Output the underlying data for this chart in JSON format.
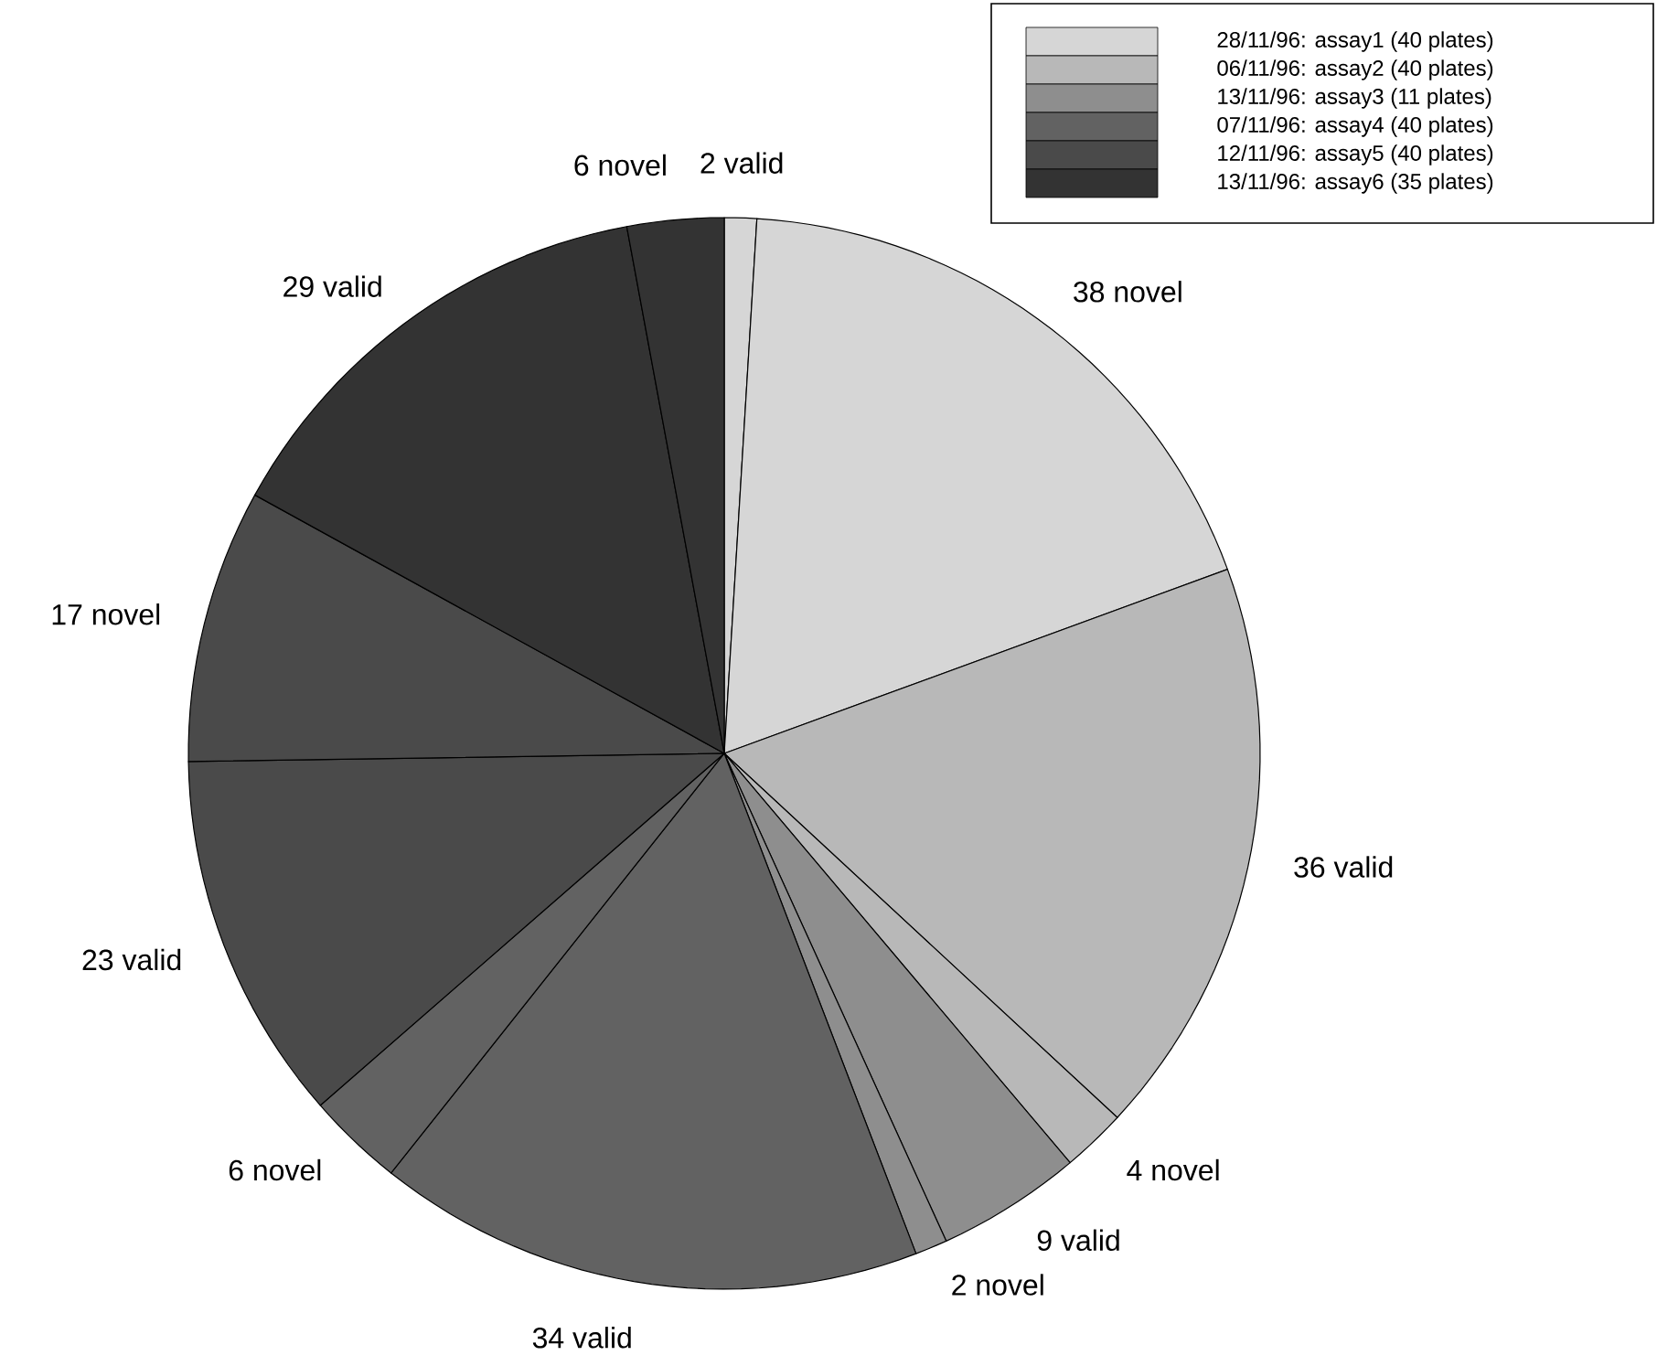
{
  "chart_data": {
    "type": "pie",
    "categories": [
      "2 valid",
      "38 novel",
      "36 valid",
      "4 novel",
      "9 valid",
      "2 novel",
      "34 valid",
      "6 novel",
      "23 valid",
      "17 novel",
      "29 valid",
      "6 novel"
    ],
    "values": [
      2,
      38,
      36,
      4,
      9,
      2,
      34,
      6,
      23,
      17,
      29,
      6
    ],
    "colors": [
      "#d6d6d6",
      "#d6d6d6",
      "#b8b8b8",
      "#b8b8b8",
      "#8e8e8e",
      "#8e8e8e",
      "#626262",
      "#626262",
      "#4a4a4a",
      "#4a4a4a",
      "#333333",
      "#333333"
    ],
    "annotations": [
      "28/11/96: assay1 (40 plates)",
      "06/11/96: assay2 (40 plates)",
      "13/11/96: assay3 (11 plates)",
      "07/11/96: assay4 (40 plates)",
      "12/11/96: assay5 (40 plates)",
      "13/11/96: assay6 (35 plates)"
    ]
  }
}
